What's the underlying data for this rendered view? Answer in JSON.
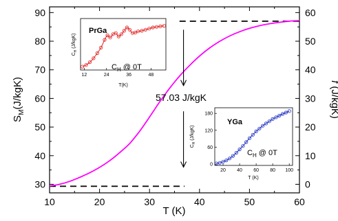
{
  "chart_data": {
    "type": "line",
    "title": "",
    "xlabel": "T (K)",
    "ylabel_main": "S",
    "ylabel_sub": "M",
    "ylabel_rest": "(J/kgK)",
    "y2label_italic": "f",
    "y2label_rest": " (J/kgK)",
    "xlim": [
      10,
      60
    ],
    "ylim": [
      27,
      92
    ],
    "y2lim": [
      -3.0,
      62.0
    ],
    "xticks": [
      "10",
      "20",
      "30",
      "40",
      "50",
      "60"
    ],
    "yticks": [
      "30",
      "40",
      "50",
      "60",
      "70",
      "80",
      "90"
    ],
    "y2ticks": [
      "0",
      "10",
      "20",
      "30",
      "40",
      "50",
      "60"
    ],
    "grid": false,
    "color": "#ff00ff",
    "series": [
      {
        "x": [
          10,
          12,
          14,
          16,
          18,
          20,
          22,
          24,
          26,
          28,
          30,
          32,
          34,
          36,
          38,
          40,
          42,
          44,
          46,
          48,
          50,
          52,
          54,
          56,
          58,
          60
        ],
        "y": [
          29.4,
          30.0,
          31.0,
          32.4,
          34.0,
          35.9,
          38.2,
          41.0,
          44.2,
          48.5,
          53.5,
          58.7,
          63.5,
          67.8,
          71.5,
          74.8,
          77.6,
          79.9,
          81.8,
          83.3,
          84.5,
          85.4,
          86.1,
          86.6,
          87.0,
          87.2
        ]
      }
    ],
    "reference_lines": [
      {
        "name": "upper",
        "y": 87.0,
        "x_from": 36,
        "x_to": 60
      },
      {
        "name": "lower",
        "y": 29.3,
        "x_from": 10,
        "x_to": 37
      }
    ],
    "annotation": "57.03 J/kgK",
    "arrows": {
      "x": 36.8,
      "down_from": 84.0,
      "down_to": 64.5,
      "up_from": 55.5,
      "up_to": 36.0
    },
    "insets": [
      {
        "name": "PrGa",
        "note": "C",
        "note_sub": "H",
        "note_rest": " @ 0T",
        "xlabel": "T(K)",
        "ylabel": "C",
        "ylabel_sub": "H",
        "ylabel_rest": " (J/kgK)",
        "xlim": [
          10,
          56
        ],
        "ylim": [
          0,
          4.6
        ],
        "xticks": [
          12,
          24,
          36,
          48
        ],
        "xtick_labels": [
          "12",
          "24",
          "36",
          "48"
        ],
        "color": "#e02020",
        "series": {
          "x": [
            11,
            13,
            15,
            17,
            19,
            21,
            23,
            24.5,
            26,
            27.5,
            29,
            30.5,
            32,
            33.5,
            35,
            36.5,
            38,
            39.5,
            41,
            43,
            45,
            47,
            49,
            51,
            53,
            55
          ],
          "y": [
            0.3,
            0.45,
            0.7,
            1.05,
            1.5,
            2.0,
            2.7,
            3.1,
            2.9,
            3.2,
            3.3,
            3.0,
            3.2,
            3.5,
            3.8,
            3.6,
            3.3,
            3.35,
            3.45,
            3.5,
            3.6,
            3.7,
            3.8,
            3.85,
            3.9,
            3.95
          ]
        }
      },
      {
        "name": "YGa",
        "note": "C",
        "note_sub": "H",
        "note_rest": " @ 0T",
        "xlabel": "T (K)",
        "ylabel": "C",
        "ylabel_sub": "H",
        "ylabel_rest": " (J/kgK)",
        "xlim": [
          10,
          104
        ],
        "ylim": [
          -5,
          200
        ],
        "xticks": [
          20,
          40,
          60,
          80,
          100
        ],
        "xtick_labels": [
          "20",
          "40",
          "60",
          "80",
          "100"
        ],
        "yticks": [
          0,
          60,
          120,
          180
        ],
        "ytick_labels": [
          "0",
          "60",
          "120",
          "180"
        ],
        "color": "#2030c0",
        "series": {
          "x": [
            12,
            16,
            20,
            24,
            28,
            32,
            36,
            40,
            44,
            48,
            52,
            56,
            60,
            64,
            68,
            72,
            76,
            80,
            84,
            88,
            92,
            96,
            100
          ],
          "y": [
            2,
            4,
            8,
            13,
            20,
            29,
            40,
            52,
            64,
            78,
            92,
            104,
            116,
            126,
            136,
            144,
            152,
            160,
            166,
            172,
            178,
            183,
            188
          ]
        }
      }
    ]
  }
}
